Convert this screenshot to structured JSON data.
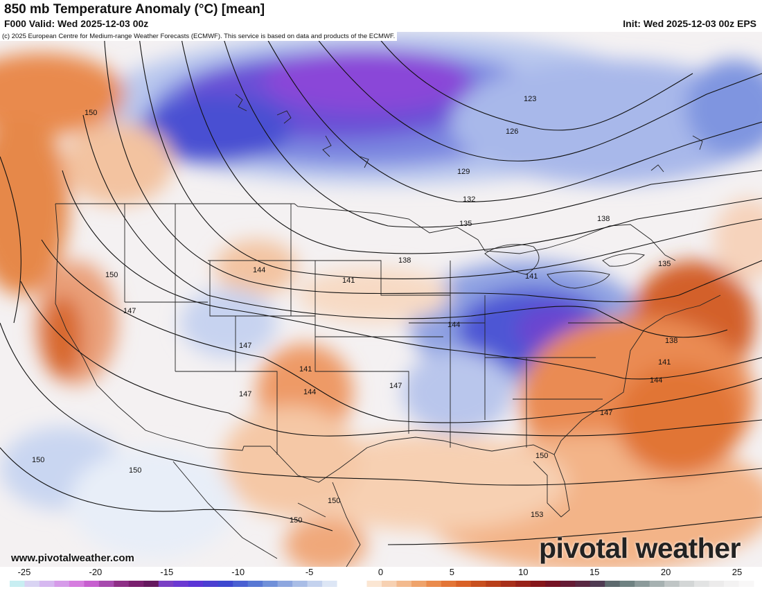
{
  "header": {
    "title": "850 mb Temperature Anomaly (°C) [mean]",
    "valid": "F000 Valid: Wed 2025-12-03 00z",
    "init": "Init: Wed 2025-12-03 00z EPS"
  },
  "copyright": "(c) 2025 European Centre for Medium-range Weather Forecasts (ECMWF). This service is based on data and products of the ECMWF.",
  "footer": {
    "website": "www.pivotalweather.com",
    "brand": "pivotal weather"
  },
  "contour_labels": {
    "c123": "123",
    "c126": "126",
    "c129": "129",
    "c132": "132",
    "c135a": "135",
    "c135b": "135",
    "c138a": "138",
    "c138b": "138",
    "c138c": "138",
    "c141a": "141",
    "c141b": "141",
    "c141c": "141",
    "c141d": "141",
    "c144a": "144",
    "c144b": "144",
    "c144c": "144",
    "c144d": "144",
    "c147a": "147",
    "c147b": "147",
    "c147c": "147",
    "c147d": "147",
    "c147e": "147",
    "c150a": "150",
    "c150b": "150",
    "c150c": "150",
    "c150d": "150",
    "c150e": "150",
    "c150f": "150",
    "c150g": "150",
    "c153": "153"
  },
  "colorbar": {
    "min": -25,
    "max": 25,
    "ticks": [
      "-25",
      "-20",
      "-15",
      "-10",
      "-5",
      "0",
      "5",
      "10",
      "15",
      "20",
      "25"
    ],
    "colors": [
      "#c8eef2",
      "#d9d4f3",
      "#d6b8f0",
      "#d69be9",
      "#d67ddf",
      "#c75fcf",
      "#a74aae",
      "#8e2f86",
      "#7a1f6e",
      "#65185e",
      "#7a3fc4",
      "#6b39d2",
      "#5b35d6",
      "#4b3fd1",
      "#3d48cf",
      "#4a60d2",
      "#5878d4",
      "#7090d9",
      "#8ea7df",
      "#a9bde6",
      "#c4d2ee",
      "#dde6f5",
      "#ffffff",
      "#ffffff",
      "#fbe6d3",
      "#f7d1b2",
      "#f3ba8e",
      "#efa36b",
      "#ea8b4d",
      "#e37536",
      "#d96127",
      "#c8501f",
      "#b9401a",
      "#a8301a",
      "#982219",
      "#86161a",
      "#751223",
      "#651b34",
      "#5a2842",
      "#4f3b52",
      "#5d6a6e",
      "#6f8282",
      "#8b9a9a",
      "#a6b1b1",
      "#bfc5c5",
      "#d3d6d6",
      "#e2e3e3",
      "#ecebeb",
      "#f3f2f2",
      "#f8f7f7"
    ]
  }
}
